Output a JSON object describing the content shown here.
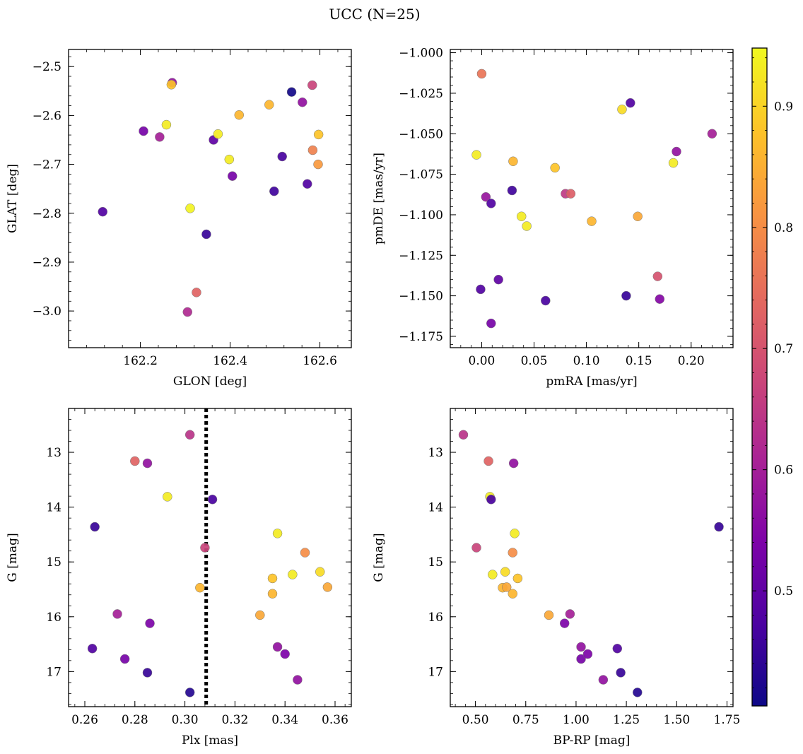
{
  "figure": {
    "title": "UCC (N=25)"
  },
  "colorbar": {
    "colormap": "plasma",
    "range": [
      0.405,
      0.948
    ],
    "ticks": [
      0.5,
      0.6,
      0.7,
      0.8,
      0.9
    ],
    "tick_labels": [
      "0.5",
      "0.6",
      "0.7",
      "0.8",
      "0.9"
    ]
  },
  "chart_data": [
    {
      "type": "scatter",
      "xlabel": "GLON [deg]",
      "ylabel": "GLAT [deg]",
      "xlim": [
        162.04,
        162.67
      ],
      "ylim": [
        -3.075,
        -2.465
      ],
      "invert_y": false,
      "xticks": [
        162.2,
        162.4,
        162.6
      ],
      "xtick_labels": [
        "162.2",
        "162.4",
        "162.6"
      ],
      "yticks": [
        -3.0,
        -2.9,
        -2.8,
        -2.7,
        -2.6,
        -2.5
      ],
      "ytick_labels": [
        "−3.0",
        "−2.9",
        "−2.8",
        "−2.7",
        "−2.6",
        "−2.5"
      ],
      "points": [
        {
          "x": 162.116,
          "y": -2.797,
          "c": 0.48
        },
        {
          "x": 162.207,
          "y": -2.632,
          "c": 0.53
        },
        {
          "x": 162.243,
          "y": -2.644,
          "c": 0.6
        },
        {
          "x": 162.258,
          "y": -2.619,
          "c": 0.93
        },
        {
          "x": 162.271,
          "y": -2.533,
          "c": 0.57
        },
        {
          "x": 162.269,
          "y": -2.537,
          "c": 0.88
        },
        {
          "x": 162.305,
          "y": -3.002,
          "c": 0.62
        },
        {
          "x": 162.311,
          "y": -2.79,
          "c": 0.94
        },
        {
          "x": 162.325,
          "y": -2.962,
          "c": 0.73
        },
        {
          "x": 162.347,
          "y": -2.843,
          "c": 0.45
        },
        {
          "x": 162.363,
          "y": -2.65,
          "c": 0.5
        },
        {
          "x": 162.373,
          "y": -2.638,
          "c": 0.93
        },
        {
          "x": 162.398,
          "y": -2.69,
          "c": 0.93
        },
        {
          "x": 162.405,
          "y": -2.724,
          "c": 0.53
        },
        {
          "x": 162.42,
          "y": -2.599,
          "c": 0.86
        },
        {
          "x": 162.487,
          "y": -2.578,
          "c": 0.86
        },
        {
          "x": 162.498,
          "y": -2.755,
          "c": 0.46
        },
        {
          "x": 162.516,
          "y": -2.684,
          "c": 0.47
        },
        {
          "x": 162.537,
          "y": -2.552,
          "c": 0.41
        },
        {
          "x": 162.561,
          "y": -2.573,
          "c": 0.57
        },
        {
          "x": 162.572,
          "y": -2.74,
          "c": 0.48
        },
        {
          "x": 162.583,
          "y": -2.538,
          "c": 0.67
        },
        {
          "x": 162.584,
          "y": -2.671,
          "c": 0.78
        },
        {
          "x": 162.596,
          "y": -2.7,
          "c": 0.82
        },
        {
          "x": 162.597,
          "y": -2.639,
          "c": 0.88
        }
      ]
    },
    {
      "type": "scatter",
      "xlabel": "pmRA [mas/yr]",
      "ylabel": "pmDE [mas/yr]",
      "xlim": [
        -0.03,
        0.24
      ],
      "ylim": [
        -1.182,
        -0.998
      ],
      "invert_y": false,
      "xticks": [
        0.0,
        0.05,
        0.1,
        0.15,
        0.2
      ],
      "xtick_labels": [
        "0.00",
        "0.05",
        "0.10",
        "0.15",
        "0.20"
      ],
      "yticks": [
        -1.175,
        -1.15,
        -1.125,
        -1.1,
        -1.075,
        -1.05,
        -1.025,
        -1.0
      ],
      "ytick_labels": [
        "−1.175",
        "−1.150",
        "−1.125",
        "−1.100",
        "−1.075",
        "−1.050",
        "−1.025",
        "−1.000"
      ],
      "points": [
        {
          "x": -0.005,
          "y": -1.063,
          "c": 0.93
        },
        {
          "x": -0.001,
          "y": -1.146,
          "c": 0.48
        },
        {
          "x": 0.0,
          "y": -1.013,
          "c": 0.76
        },
        {
          "x": 0.004,
          "y": -1.089,
          "c": 0.58
        },
        {
          "x": 0.009,
          "y": -1.093,
          "c": 0.48
        },
        {
          "x": 0.009,
          "y": -1.167,
          "c": 0.53
        },
        {
          "x": 0.016,
          "y": -1.14,
          "c": 0.5
        },
        {
          "x": 0.03,
          "y": -1.067,
          "c": 0.86
        },
        {
          "x": 0.029,
          "y": -1.085,
          "c": 0.46
        },
        {
          "x": 0.038,
          "y": -1.101,
          "c": 0.93
        },
        {
          "x": 0.043,
          "y": -1.107,
          "c": 0.93
        },
        {
          "x": 0.061,
          "y": -1.153,
          "c": 0.47
        },
        {
          "x": 0.07,
          "y": -1.071,
          "c": 0.88
        },
        {
          "x": 0.08,
          "y": -1.087,
          "c": 0.65
        },
        {
          "x": 0.085,
          "y": -1.087,
          "c": 0.72
        },
        {
          "x": 0.105,
          "y": -1.104,
          "c": 0.86
        },
        {
          "x": 0.134,
          "y": -1.035,
          "c": 0.91
        },
        {
          "x": 0.138,
          "y": -1.15,
          "c": 0.45
        },
        {
          "x": 0.142,
          "y": -1.031,
          "c": 0.48
        },
        {
          "x": 0.149,
          "y": -1.101,
          "c": 0.84
        },
        {
          "x": 0.168,
          "y": -1.138,
          "c": 0.7
        },
        {
          "x": 0.17,
          "y": -1.152,
          "c": 0.55
        },
        {
          "x": 0.183,
          "y": -1.068,
          "c": 0.93
        },
        {
          "x": 0.186,
          "y": -1.061,
          "c": 0.57
        },
        {
          "x": 0.22,
          "y": -1.05,
          "c": 0.6
        }
      ]
    },
    {
      "type": "scatter",
      "xlabel": "Plx [mas]",
      "ylabel": "G [mag]",
      "xlim": [
        0.2535,
        0.3665
      ],
      "ylim": [
        12.2,
        17.64
      ],
      "invert_y": true,
      "vline": {
        "x": 0.3085,
        "style": "dotted"
      },
      "xticks": [
        0.26,
        0.28,
        0.3,
        0.32,
        0.34,
        0.36
      ],
      "xtick_labels": [
        "0.26",
        "0.28",
        "0.30",
        "0.32",
        "0.34",
        "0.36"
      ],
      "yticks": [
        13,
        14,
        15,
        16,
        17
      ],
      "ytick_labels": [
        "13",
        "14",
        "15",
        "16",
        "17"
      ],
      "points": [
        {
          "x": 0.263,
          "y": 16.58,
          "c": 0.48
        },
        {
          "x": 0.264,
          "y": 14.36,
          "c": 0.45
        },
        {
          "x": 0.273,
          "y": 15.95,
          "c": 0.6
        },
        {
          "x": 0.276,
          "y": 16.77,
          "c": 0.53
        },
        {
          "x": 0.28,
          "y": 13.16,
          "c": 0.73
        },
        {
          "x": 0.285,
          "y": 13.2,
          "c": 0.57
        },
        {
          "x": 0.285,
          "y": 17.02,
          "c": 0.45
        },
        {
          "x": 0.286,
          "y": 16.12,
          "c": 0.54
        },
        {
          "x": 0.293,
          "y": 13.81,
          "c": 0.93
        },
        {
          "x": 0.302,
          "y": 12.68,
          "c": 0.64
        },
        {
          "x": 0.302,
          "y": 17.38,
          "c": 0.43
        },
        {
          "x": 0.306,
          "y": 15.47,
          "c": 0.86
        },
        {
          "x": 0.308,
          "y": 14.74,
          "c": 0.67
        },
        {
          "x": 0.311,
          "y": 13.86,
          "c": 0.47
        },
        {
          "x": 0.33,
          "y": 15.97,
          "c": 0.84
        },
        {
          "x": 0.335,
          "y": 15.3,
          "c": 0.88
        },
        {
          "x": 0.335,
          "y": 15.58,
          "c": 0.86
        },
        {
          "x": 0.337,
          "y": 14.48,
          "c": 0.93
        },
        {
          "x": 0.337,
          "y": 16.55,
          "c": 0.57
        },
        {
          "x": 0.34,
          "y": 16.68,
          "c": 0.54
        },
        {
          "x": 0.343,
          "y": 15.23,
          "c": 0.93
        },
        {
          "x": 0.345,
          "y": 17.15,
          "c": 0.57
        },
        {
          "x": 0.348,
          "y": 14.83,
          "c": 0.8
        },
        {
          "x": 0.354,
          "y": 15.18,
          "c": 0.91
        },
        {
          "x": 0.357,
          "y": 15.46,
          "c": 0.84
        }
      ]
    },
    {
      "type": "scatter",
      "xlabel": "BP-RP [mag]",
      "ylabel": "G [mag]",
      "xlim": [
        0.375,
        1.78
      ],
      "ylim": [
        12.2,
        17.64
      ],
      "invert_y": true,
      "xticks": [
        0.5,
        0.75,
        1.0,
        1.25,
        1.5,
        1.75
      ],
      "xtick_labels": [
        "0.50",
        "0.75",
        "1.00",
        "1.25",
        "1.50",
        "1.75"
      ],
      "yticks": [
        13,
        14,
        15,
        16,
        17
      ],
      "ytick_labels": [
        "13",
        "14",
        "15",
        "16",
        "17"
      ],
      "points": [
        {
          "x": 0.44,
          "y": 12.68,
          "c": 0.64
        },
        {
          "x": 0.505,
          "y": 14.74,
          "c": 0.67
        },
        {
          "x": 0.565,
          "y": 13.16,
          "c": 0.73
        },
        {
          "x": 0.572,
          "y": 13.81,
          "c": 0.93
        },
        {
          "x": 0.578,
          "y": 13.86,
          "c": 0.47
        },
        {
          "x": 0.585,
          "y": 15.23,
          "c": 0.93
        },
        {
          "x": 0.635,
          "y": 15.47,
          "c": 0.86
        },
        {
          "x": 0.648,
          "y": 15.18,
          "c": 0.91
        },
        {
          "x": 0.655,
          "y": 15.46,
          "c": 0.84
        },
        {
          "x": 0.685,
          "y": 14.83,
          "c": 0.8
        },
        {
          "x": 0.685,
          "y": 15.58,
          "c": 0.86
        },
        {
          "x": 0.69,
          "y": 13.2,
          "c": 0.57
        },
        {
          "x": 0.695,
          "y": 14.48,
          "c": 0.93
        },
        {
          "x": 0.71,
          "y": 15.3,
          "c": 0.88
        },
        {
          "x": 0.865,
          "y": 15.97,
          "c": 0.84
        },
        {
          "x": 0.943,
          "y": 16.12,
          "c": 0.54
        },
        {
          "x": 0.97,
          "y": 15.95,
          "c": 0.6
        },
        {
          "x": 1.025,
          "y": 16.55,
          "c": 0.57
        },
        {
          "x": 1.025,
          "y": 16.77,
          "c": 0.53
        },
        {
          "x": 1.058,
          "y": 16.68,
          "c": 0.54
        },
        {
          "x": 1.135,
          "y": 17.15,
          "c": 0.57
        },
        {
          "x": 1.205,
          "y": 16.58,
          "c": 0.48
        },
        {
          "x": 1.222,
          "y": 17.02,
          "c": 0.45
        },
        {
          "x": 1.305,
          "y": 17.38,
          "c": 0.43
        },
        {
          "x": 1.71,
          "y": 14.36,
          "c": 0.45
        }
      ]
    }
  ]
}
